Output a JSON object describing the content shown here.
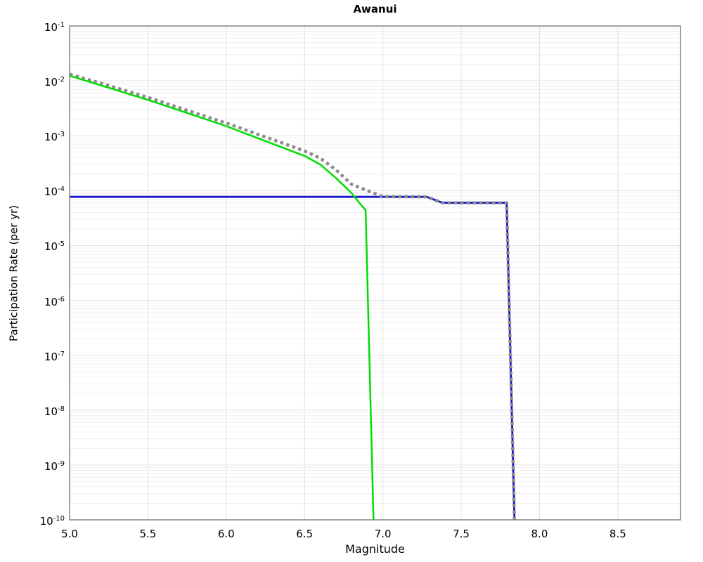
{
  "title": "Awanui",
  "axes": {
    "xlabel": "Magnitude",
    "ylabel": "Participation Rate (per yr)"
  },
  "colors": {
    "blue_line": "#1515cd",
    "gray_dotted": "#8c8c8c",
    "green_line": "#00dd00",
    "grid_major": "#e2e2e2",
    "grid_minor": "#efefef",
    "frame": "#848484",
    "text": "#000000",
    "background": "#ffffff"
  },
  "chart_data": {
    "type": "line",
    "title": "Awanui",
    "xlabel": "Magnitude",
    "ylabel": "Participation Rate (per yr)",
    "xlim": [
      5.0,
      8.9
    ],
    "ylim": [
      1e-10,
      0.1
    ],
    "y_scale": "log",
    "grid": true,
    "legend": null,
    "x_ticks": [
      5.0,
      5.5,
      6.0,
      6.5,
      7.0,
      7.5,
      8.0,
      8.5
    ],
    "x_tick_labels": [
      "5.0",
      "5.5",
      "6.0",
      "6.5",
      "7.0",
      "7.5",
      "8.0",
      "8.5"
    ],
    "y_tick_exponents": [
      -1,
      -2,
      -3,
      -4,
      -5,
      -6,
      -7,
      -8,
      -9,
      -10
    ],
    "series": [
      {
        "name": "blue-rate-curve",
        "color": "#1515cd",
        "style": "solid",
        "width": 2.8,
        "points": [
          [
            5.0,
            7.7e-05
          ],
          [
            7.28,
            7.7e-05
          ],
          [
            7.38,
            6e-05
          ],
          [
            7.79,
            6e-05
          ],
          [
            7.84,
            1e-10
          ]
        ]
      },
      {
        "name": "gray-dotted-rate-curve",
        "color": "#8c8c8c",
        "style": "dotted",
        "width": 4.5,
        "points": [
          [
            5.0,
            0.0132
          ],
          [
            5.25,
            0.0082
          ],
          [
            5.5,
            0.005
          ],
          [
            5.75,
            0.0029
          ],
          [
            6.0,
            0.0017
          ],
          [
            6.25,
            0.00095
          ],
          [
            6.5,
            0.00053
          ],
          [
            6.6,
            0.00039
          ],
          [
            6.7,
            0.00024
          ],
          [
            6.8,
            0.00013
          ],
          [
            6.9,
            0.0001
          ],
          [
            7.0,
            7.8e-05
          ],
          [
            7.28,
            7.7e-05
          ],
          [
            7.38,
            6e-05
          ],
          [
            7.79,
            6e-05
          ],
          [
            7.84,
            1e-10
          ]
        ]
      },
      {
        "name": "green-rate-curve",
        "color": "#00dd00",
        "style": "solid",
        "width": 2.5,
        "points": [
          [
            5.0,
            0.0124
          ],
          [
            5.25,
            0.0075
          ],
          [
            5.5,
            0.0045
          ],
          [
            5.75,
            0.0026
          ],
          [
            6.0,
            0.0015
          ],
          [
            6.25,
            0.0008
          ],
          [
            6.5,
            0.00043
          ],
          [
            6.6,
            0.0003
          ],
          [
            6.7,
            0.00017
          ],
          [
            6.8,
            9e-05
          ],
          [
            6.85,
            6e-05
          ],
          [
            6.89,
            4.4e-05
          ],
          [
            6.94,
            1e-10
          ]
        ]
      }
    ]
  }
}
